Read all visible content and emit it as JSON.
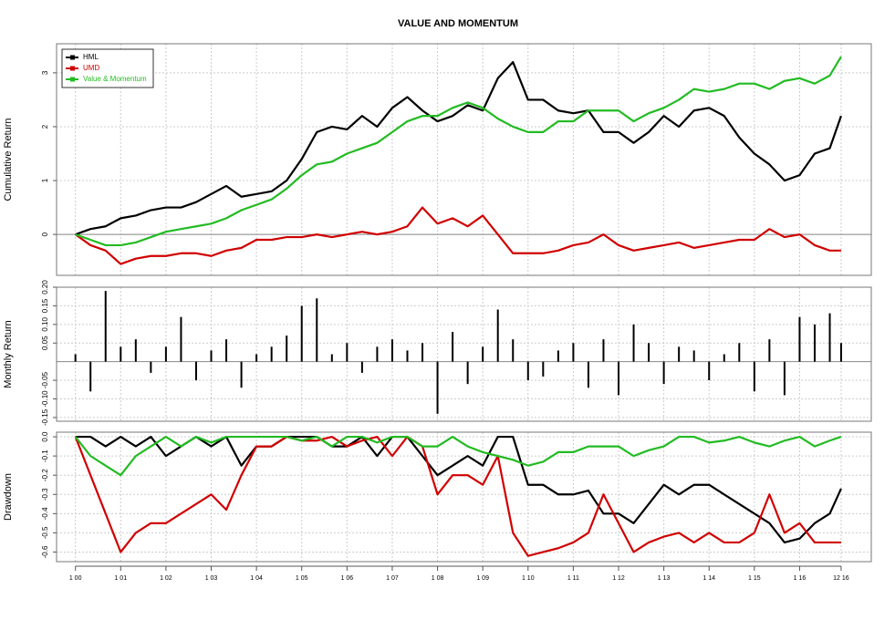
{
  "chart_data": [
    {
      "type": "line",
      "title": "VALUE AND MOMENTUM",
      "ylabel": "Cumulative Return",
      "grid": true,
      "legend": "top-left",
      "x": [
        0,
        4,
        8,
        12,
        16,
        20,
        24,
        28,
        32,
        36,
        40,
        44,
        48,
        52,
        56,
        60,
        64,
        68,
        72,
        76,
        80,
        84,
        88,
        92,
        96,
        100,
        104,
        108,
        112,
        116,
        120,
        124,
        128,
        132,
        136,
        140,
        144,
        148,
        152,
        156,
        160,
        164,
        168,
        172,
        176,
        180,
        184,
        188,
        192,
        196,
        200,
        203
      ],
      "xlim": [
        -5,
        211
      ],
      "ylim": [
        -0.76,
        3.54
      ],
      "yticks": [
        0,
        1,
        2,
        3
      ],
      "series": [
        {
          "name": "HML",
          "color": "#000000",
          "values": [
            0,
            0.1,
            0.15,
            0.3,
            0.35,
            0.45,
            0.5,
            0.5,
            0.6,
            0.75,
            0.9,
            0.7,
            0.75,
            0.8,
            1.0,
            1.4,
            1.9,
            2.0,
            1.95,
            2.2,
            2.0,
            2.35,
            2.55,
            2.3,
            2.1,
            2.2,
            2.4,
            2.3,
            2.9,
            3.2,
            2.5,
            2.5,
            2.3,
            2.25,
            2.3,
            1.9,
            1.9,
            1.7,
            1.9,
            2.2,
            2.0,
            2.3,
            2.35,
            2.2,
            1.8,
            1.5,
            1.3,
            1.0,
            1.1,
            1.5,
            1.6,
            2.2
          ]
        },
        {
          "name": "UMD",
          "color": "#d00000",
          "values": [
            0,
            -0.2,
            -0.3,
            -0.55,
            -0.45,
            -0.4,
            -0.4,
            -0.35,
            -0.35,
            -0.4,
            -0.3,
            -0.25,
            -0.1,
            -0.1,
            -0.05,
            -0.05,
            0.0,
            -0.05,
            0.0,
            0.05,
            0.0,
            0.05,
            0.15,
            0.5,
            0.2,
            0.3,
            0.15,
            0.35,
            0.0,
            -0.35,
            -0.35,
            -0.35,
            -0.3,
            -0.2,
            -0.15,
            0.0,
            -0.2,
            -0.3,
            -0.25,
            -0.2,
            -0.15,
            -0.25,
            -0.2,
            -0.15,
            -0.1,
            -0.1,
            0.1,
            -0.05,
            0.0,
            -0.2,
            -0.3,
            -0.3
          ]
        },
        {
          "name": "Value & Momentum",
          "color": "#22bb22",
          "values": [
            0,
            -0.1,
            -0.2,
            -0.2,
            -0.15,
            -0.05,
            0.05,
            0.1,
            0.15,
            0.2,
            0.3,
            0.45,
            0.55,
            0.65,
            0.85,
            1.1,
            1.3,
            1.35,
            1.5,
            1.6,
            1.7,
            1.9,
            2.1,
            2.2,
            2.2,
            2.35,
            2.45,
            2.35,
            2.15,
            2.0,
            1.9,
            1.9,
            2.1,
            2.1,
            2.3,
            2.3,
            2.3,
            2.1,
            2.25,
            2.35,
            2.5,
            2.7,
            2.65,
            2.7,
            2.8,
            2.8,
            2.7,
            2.85,
            2.9,
            2.8,
            2.95,
            3.3
          ]
        }
      ]
    },
    {
      "type": "bar",
      "ylabel": "Monthly Return",
      "grid": true,
      "color": "#000000",
      "x": [
        0,
        4,
        8,
        12,
        16,
        20,
        24,
        28,
        32,
        36,
        40,
        44,
        48,
        52,
        56,
        60,
        64,
        68,
        72,
        76,
        80,
        84,
        88,
        92,
        96,
        100,
        104,
        108,
        112,
        116,
        120,
        124,
        128,
        132,
        136,
        140,
        144,
        148,
        152,
        156,
        160,
        164,
        168,
        172,
        176,
        180,
        184,
        188,
        192,
        196,
        200,
        203
      ],
      "xlim": [
        -5,
        211
      ],
      "ylim": [
        -0.16,
        0.2
      ],
      "yticks": [
        {
          "value": 0.2,
          "label": "0.20"
        },
        0.15,
        {
          "value": 0.1,
          "label": "0.10"
        },
        0.05,
        -0.05,
        {
          "value": -0.1,
          "label": "-0.10"
        },
        -0.15
      ],
      "values": [
        0.02,
        -0.08,
        0.19,
        0.04,
        0.06,
        -0.03,
        0.04,
        0.12,
        -0.05,
        0.03,
        0.06,
        -0.07,
        0.02,
        0.04,
        0.07,
        0.15,
        0.17,
        0.02,
        0.05,
        -0.03,
        0.04,
        0.06,
        0.03,
        0.05,
        -0.14,
        0.08,
        -0.06,
        0.04,
        0.14,
        0.06,
        -0.05,
        -0.04,
        0.03,
        0.05,
        -0.07,
        0.06,
        -0.09,
        0.1,
        0.05,
        -0.06,
        0.04,
        0.03,
        -0.05,
        0.02,
        0.05,
        -0.08,
        0.06,
        -0.09,
        0.12,
        0.1,
        0.13,
        0.05
      ]
    },
    {
      "type": "line",
      "ylabel": "Drawdown",
      "grid": true,
      "x": [
        0,
        4,
        8,
        12,
        16,
        20,
        24,
        28,
        32,
        36,
        40,
        44,
        48,
        52,
        56,
        60,
        64,
        68,
        72,
        76,
        80,
        84,
        88,
        92,
        96,
        100,
        104,
        108,
        112,
        116,
        120,
        124,
        128,
        132,
        136,
        140,
        144,
        148,
        152,
        156,
        160,
        164,
        168,
        172,
        176,
        180,
        184,
        188,
        192,
        196,
        200,
        203
      ],
      "xlim": [
        -5,
        211
      ],
      "ylim": [
        -0.65,
        0.024
      ],
      "yticks": [
        {
          "value": 0,
          "label": "0.0"
        },
        -0.1,
        -0.2,
        -0.3,
        -0.4,
        -0.5,
        -0.6
      ],
      "xticks": [
        {
          "value": 0,
          "label": "1 00"
        },
        {
          "value": 12,
          "label": "1 01"
        },
        {
          "value": 24,
          "label": "1 02"
        },
        {
          "value": 36,
          "label": "1 03"
        },
        {
          "value": 48,
          "label": "1 04"
        },
        {
          "value": 60,
          "label": "1 05"
        },
        {
          "value": 72,
          "label": "1 06"
        },
        {
          "value": 84,
          "label": "1 07"
        },
        {
          "value": 96,
          "label": "1 08"
        },
        {
          "value": 108,
          "label": "1 09"
        },
        {
          "value": 120,
          "label": "1 10"
        },
        {
          "value": 132,
          "label": "1 11"
        },
        {
          "value": 144,
          "label": "1 12"
        },
        {
          "value": 156,
          "label": "1 13"
        },
        {
          "value": 168,
          "label": "1 14"
        },
        {
          "value": 180,
          "label": "1 15"
        },
        {
          "value": 192,
          "label": "1 16"
        },
        {
          "value": 203,
          "label": "12 16"
        }
      ],
      "series": [
        {
          "color": "#000000",
          "values": [
            0,
            0,
            -0.05,
            0,
            -0.05,
            0,
            -0.1,
            -0.05,
            0,
            -0.05,
            0,
            -0.15,
            -0.05,
            -0.05,
            0,
            0,
            0,
            -0.05,
            -0.05,
            0,
            -0.1,
            0,
            0,
            -0.1,
            -0.2,
            -0.15,
            -0.1,
            -0.15,
            0,
            0,
            -0.25,
            -0.25,
            -0.3,
            -0.3,
            -0.28,
            -0.4,
            -0.4,
            -0.45,
            -0.35,
            -0.25,
            -0.3,
            -0.25,
            -0.25,
            -0.3,
            -0.35,
            -0.4,
            -0.45,
            -0.55,
            -0.53,
            -0.45,
            -0.4,
            -0.27
          ]
        },
        {
          "color": "#d00000",
          "values": [
            0,
            -0.2,
            -0.4,
            -0.6,
            -0.5,
            -0.45,
            -0.45,
            -0.4,
            -0.35,
            -0.3,
            -0.38,
            -0.2,
            -0.05,
            -0.05,
            0,
            -0.02,
            -0.02,
            0,
            -0.05,
            -0.02,
            0,
            -0.1,
            0,
            -0.05,
            -0.3,
            -0.2,
            -0.2,
            -0.25,
            -0.1,
            -0.5,
            -0.62,
            -0.6,
            -0.58,
            -0.55,
            -0.5,
            -0.3,
            -0.45,
            -0.6,
            -0.55,
            -0.52,
            -0.5,
            -0.55,
            -0.5,
            -0.55,
            -0.55,
            -0.5,
            -0.3,
            -0.5,
            -0.45,
            -0.55,
            -0.55,
            -0.55
          ]
        },
        {
          "color": "#22bb22",
          "values": [
            0,
            -0.1,
            -0.15,
            -0.2,
            -0.1,
            -0.05,
            0,
            -0.05,
            0,
            -0.03,
            0,
            0,
            0,
            0,
            0,
            -0.02,
            0,
            -0.05,
            0,
            0,
            -0.03,
            0,
            0,
            -0.05,
            -0.05,
            0,
            -0.05,
            -0.08,
            -0.1,
            -0.12,
            -0.15,
            -0.13,
            -0.08,
            -0.08,
            -0.05,
            -0.05,
            -0.05,
            -0.1,
            -0.07,
            -0.05,
            0,
            0,
            -0.03,
            -0.02,
            0,
            -0.03,
            -0.05,
            -0.02,
            0,
            -0.05,
            -0.02,
            0
          ]
        }
      ]
    }
  ]
}
